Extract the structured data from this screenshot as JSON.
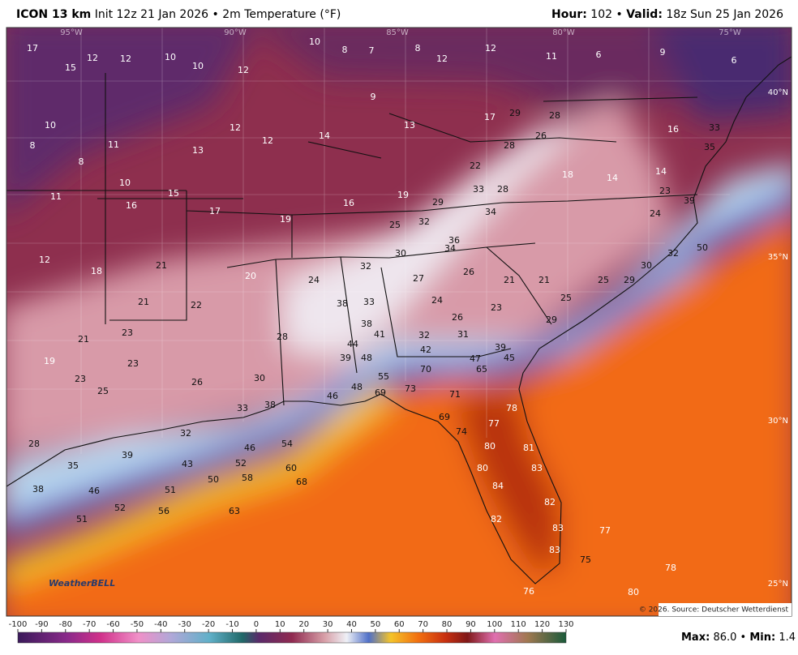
{
  "header": {
    "model": "ICON 13 km",
    "init": "Init 12z 21 Jan 2026",
    "field": "2m Temperature (°F)",
    "separator": "•",
    "hour_label": "Hour:",
    "hour": "102",
    "valid_label": "Valid:",
    "valid": "18z Sun 25 Jan 2026"
  },
  "map": {
    "lat_labels": [
      "40°N",
      "35°N",
      "30°N",
      "25°N"
    ],
    "lon_labels": [
      "95°W",
      "90°W",
      "85°W",
      "80°W",
      "75°W"
    ],
    "logo": "WeatherBELL",
    "credit": "© 2026. Source: Deutscher Wetterdienst"
  },
  "stations": [
    17,
    15,
    12,
    12,
    10,
    10,
    12,
    10,
    8,
    7,
    8,
    12,
    12,
    11,
    6,
    9,
    6,
    10,
    8,
    8,
    11,
    10,
    15,
    13,
    12,
    12,
    14,
    9,
    13,
    17,
    29,
    28,
    26,
    28,
    22,
    28,
    33,
    29,
    34,
    36,
    34,
    18,
    14,
    23,
    39,
    24,
    11,
    16,
    17,
    19,
    16,
    19,
    25,
    32,
    30,
    32,
    12,
    18,
    21,
    21,
    22,
    20,
    24,
    38,
    33,
    38,
    23,
    21,
    19,
    23,
    23,
    25,
    26,
    30,
    28,
    27,
    26,
    21,
    21,
    24,
    26,
    23,
    25,
    25,
    29,
    29,
    44,
    39,
    48,
    41,
    32,
    31,
    39,
    45,
    47,
    65,
    42,
    55,
    48,
    46,
    38,
    33,
    70,
    73,
    69,
    71,
    78,
    77,
    69,
    74,
    80,
    81,
    80,
    83,
    84,
    82,
    82,
    83,
    83,
    75,
    77,
    78,
    80,
    76,
    28,
    35,
    39,
    32,
    46,
    54,
    60,
    68,
    43,
    52,
    50,
    58,
    63,
    51,
    56,
    52,
    46,
    51,
    38,
    50,
    32,
    30,
    33,
    35,
    16,
    14
  ],
  "colorbar": {
    "ticks": [
      -100,
      -90,
      -80,
      -70,
      -60,
      -50,
      -40,
      -30,
      -20,
      -10,
      0,
      10,
      20,
      30,
      40,
      50,
      60,
      70,
      80,
      90,
      100,
      110,
      120,
      130
    ]
  },
  "footer": {
    "max_label": "Max:",
    "max": "86.0",
    "min_label": "Min:",
    "min": "1.4"
  }
}
